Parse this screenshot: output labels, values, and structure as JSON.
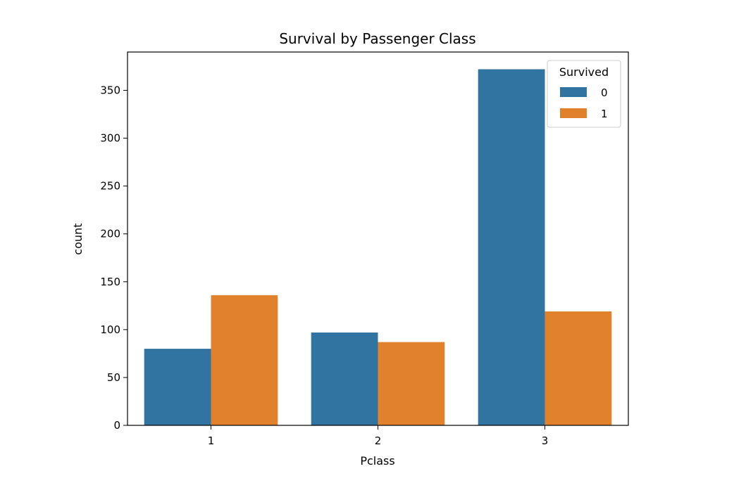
{
  "chart_data": {
    "type": "bar",
    "title": "Survival by Passenger Class",
    "xlabel": "Pclass",
    "ylabel": "count",
    "categories": [
      "1",
      "2",
      "3"
    ],
    "series": [
      {
        "name": "0",
        "values": [
          80,
          97,
          372
        ],
        "color": "#3274a1"
      },
      {
        "name": "1",
        "values": [
          136,
          87,
          119
        ],
        "color": "#e1812c"
      }
    ],
    "ylim": [
      0,
      390
    ],
    "yticks": [
      0,
      50,
      100,
      150,
      200,
      250,
      300,
      350
    ],
    "grid": false,
    "legend": {
      "title": "Survived",
      "position": "upper right"
    }
  }
}
